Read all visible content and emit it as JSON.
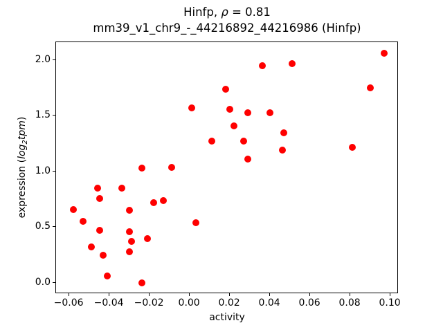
{
  "figure": {
    "title1_pre": "Hinfp, ",
    "title1_rho": "ρ",
    "title1_post": " = 0.81",
    "title2": "mm39_v1_chr9_-_44216892_44216986 (Hinfp)",
    "xlabel": "activity",
    "ylabel_pre": "expression (",
    "ylabel_log": "log",
    "ylabel_sub": "2",
    "ylabel_tpm": "tpm",
    "ylabel_post": ")"
  },
  "chart_data": {
    "type": "scatter",
    "title": "Hinfp, ρ = 0.81\nmm39_v1_chr9_-_44216892_44216986 (Hinfp)",
    "xlabel": "activity",
    "ylabel": "expression (log2tpm)",
    "marker_color": "#fe0000",
    "grid": false,
    "legend": null,
    "xlim": [
      -0.0666,
      0.1041
    ],
    "ylim": [
      -0.0994,
      2.161
    ],
    "xticks": [
      -0.06,
      -0.04,
      -0.02,
      0.0,
      0.02,
      0.04,
      0.06,
      0.08,
      0.1
    ],
    "xtick_labels": [
      "−0.06",
      "−0.04",
      "−0.02",
      "0.00",
      "0.02",
      "0.04",
      "0.06",
      "0.08",
      "0.10"
    ],
    "yticks": [
      0.0,
      0.5,
      1.0,
      1.5,
      2.0
    ],
    "ytick_labels": [
      "0.0",
      "0.5",
      "1.0",
      "1.5",
      "2.0"
    ],
    "points": [
      [
        0.097,
        2.06
      ],
      [
        0.051,
        1.97
      ],
      [
        0.036,
        1.95
      ],
      [
        0.09,
        1.75
      ],
      [
        0.018,
        1.74
      ],
      [
        0.001,
        1.57
      ],
      [
        0.02,
        1.56
      ],
      [
        0.029,
        1.53
      ],
      [
        0.04,
        1.53
      ],
      [
        0.022,
        1.41
      ],
      [
        0.047,
        1.35
      ],
      [
        0.011,
        1.27
      ],
      [
        0.027,
        1.27
      ],
      [
        0.081,
        1.22
      ],
      [
        0.046,
        1.19
      ],
      [
        0.029,
        1.11
      ],
      [
        -0.009,
        1.04
      ],
      [
        -0.024,
        1.03
      ],
      [
        -0.046,
        0.85
      ],
      [
        -0.034,
        0.85
      ],
      [
        -0.045,
        0.76
      ],
      [
        -0.013,
        0.74
      ],
      [
        -0.018,
        0.72
      ],
      [
        -0.058,
        0.66
      ],
      [
        -0.03,
        0.65
      ],
      [
        -0.053,
        0.55
      ],
      [
        0.003,
        0.54
      ],
      [
        -0.045,
        0.47
      ],
      [
        -0.03,
        0.46
      ],
      [
        -0.021,
        0.4
      ],
      [
        -0.029,
        0.37
      ],
      [
        -0.049,
        0.32
      ],
      [
        -0.03,
        0.28
      ],
      [
        -0.043,
        0.25
      ],
      [
        -0.041,
        0.06
      ],
      [
        -0.024,
        0.0
      ]
    ]
  }
}
